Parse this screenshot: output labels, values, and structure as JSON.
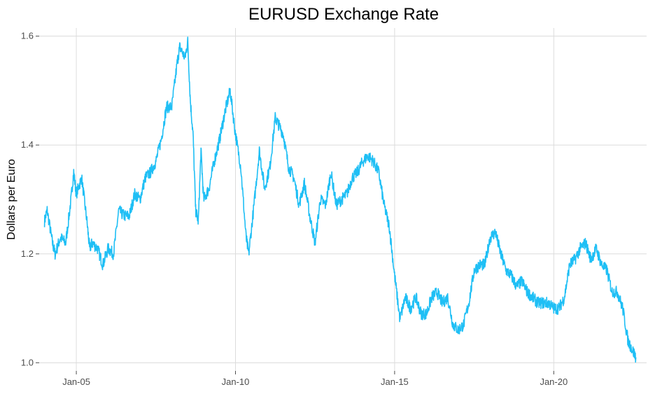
{
  "chart_data": {
    "type": "line",
    "title": "EURUSD Exchange Rate",
    "xlabel": "",
    "ylabel": "Dollars per Euro",
    "x_ticks": [
      "Jan-05",
      "Jan-10",
      "Jan-15",
      "Jan-20"
    ],
    "y_ticks": [
      "1.0",
      "1.2",
      "1.4",
      "1.6"
    ],
    "y_tick_values": [
      1.0,
      1.2,
      1.4,
      1.6
    ],
    "xlim": [
      "2003-11-01",
      "2022-12-01"
    ],
    "ylim": [
      0.985,
      1.615
    ],
    "grid": true,
    "series": [
      {
        "color": "#1FBFF5",
        "x": [
          "2004-01",
          "2004-02",
          "2004-04",
          "2004-05",
          "2004-07",
          "2004-09",
          "2004-11",
          "2004-12",
          "2005-01",
          "2005-03",
          "2005-05",
          "2005-06",
          "2005-07",
          "2005-09",
          "2005-11",
          "2006-01",
          "2006-03",
          "2006-05",
          "2006-07",
          "2006-09",
          "2006-11",
          "2007-01",
          "2007-03",
          "2007-05",
          "2007-07",
          "2007-09",
          "2007-11",
          "2008-01",
          "2008-03",
          "2008-04",
          "2008-06",
          "2008-07",
          "2008-08",
          "2008-09",
          "2008-10",
          "2008-11",
          "2008-12",
          "2009-01",
          "2009-03",
          "2009-05",
          "2009-07",
          "2009-09",
          "2009-11",
          "2010-01",
          "2010-03",
          "2010-05",
          "2010-06",
          "2010-08",
          "2010-10",
          "2010-12",
          "2011-02",
          "2011-04",
          "2011-05",
          "2011-07",
          "2011-09",
          "2011-11",
          "2012-01",
          "2012-03",
          "2012-05",
          "2012-07",
          "2012-09",
          "2012-11",
          "2013-01",
          "2013-03",
          "2013-05",
          "2013-07",
          "2013-09",
          "2013-11",
          "2014-01",
          "2014-03",
          "2014-05",
          "2014-07",
          "2014-09",
          "2014-11",
          "2015-01",
          "2015-03",
          "2015-05",
          "2015-07",
          "2015-09",
          "2015-11",
          "2016-01",
          "2016-03",
          "2016-05",
          "2016-07",
          "2016-09",
          "2016-11",
          "2017-01",
          "2017-03",
          "2017-05",
          "2017-07",
          "2017-09",
          "2017-11",
          "2018-01",
          "2018-03",
          "2018-05",
          "2018-07",
          "2018-09",
          "2018-11",
          "2019-01",
          "2019-03",
          "2019-05",
          "2019-07",
          "2019-09",
          "2019-11",
          "2020-01",
          "2020-03",
          "2020-05",
          "2020-07",
          "2020-09",
          "2020-11",
          "2021-01",
          "2021-03",
          "2021-05",
          "2021-07",
          "2021-09",
          "2021-11",
          "2022-01",
          "2022-03",
          "2022-05",
          "2022-07",
          "2022-08"
        ],
        "values": [
          1.26,
          1.28,
          1.22,
          1.2,
          1.23,
          1.22,
          1.3,
          1.35,
          1.31,
          1.34,
          1.26,
          1.21,
          1.22,
          1.21,
          1.18,
          1.21,
          1.2,
          1.28,
          1.27,
          1.27,
          1.31,
          1.3,
          1.34,
          1.35,
          1.37,
          1.41,
          1.47,
          1.47,
          1.55,
          1.58,
          1.56,
          1.59,
          1.48,
          1.42,
          1.28,
          1.26,
          1.39,
          1.3,
          1.32,
          1.37,
          1.41,
          1.46,
          1.5,
          1.42,
          1.36,
          1.23,
          1.2,
          1.29,
          1.39,
          1.32,
          1.36,
          1.45,
          1.44,
          1.42,
          1.36,
          1.34,
          1.29,
          1.33,
          1.27,
          1.22,
          1.3,
          1.29,
          1.35,
          1.29,
          1.3,
          1.31,
          1.34,
          1.35,
          1.37,
          1.38,
          1.37,
          1.35,
          1.29,
          1.25,
          1.16,
          1.08,
          1.12,
          1.1,
          1.12,
          1.09,
          1.09,
          1.12,
          1.13,
          1.11,
          1.12,
          1.07,
          1.06,
          1.07,
          1.11,
          1.17,
          1.18,
          1.18,
          1.23,
          1.24,
          1.2,
          1.17,
          1.16,
          1.14,
          1.15,
          1.13,
          1.12,
          1.11,
          1.11,
          1.11,
          1.1,
          1.1,
          1.12,
          1.18,
          1.19,
          1.21,
          1.22,
          1.19,
          1.21,
          1.18,
          1.17,
          1.13,
          1.13,
          1.1,
          1.04,
          1.02,
          1.01
        ]
      }
    ]
  }
}
